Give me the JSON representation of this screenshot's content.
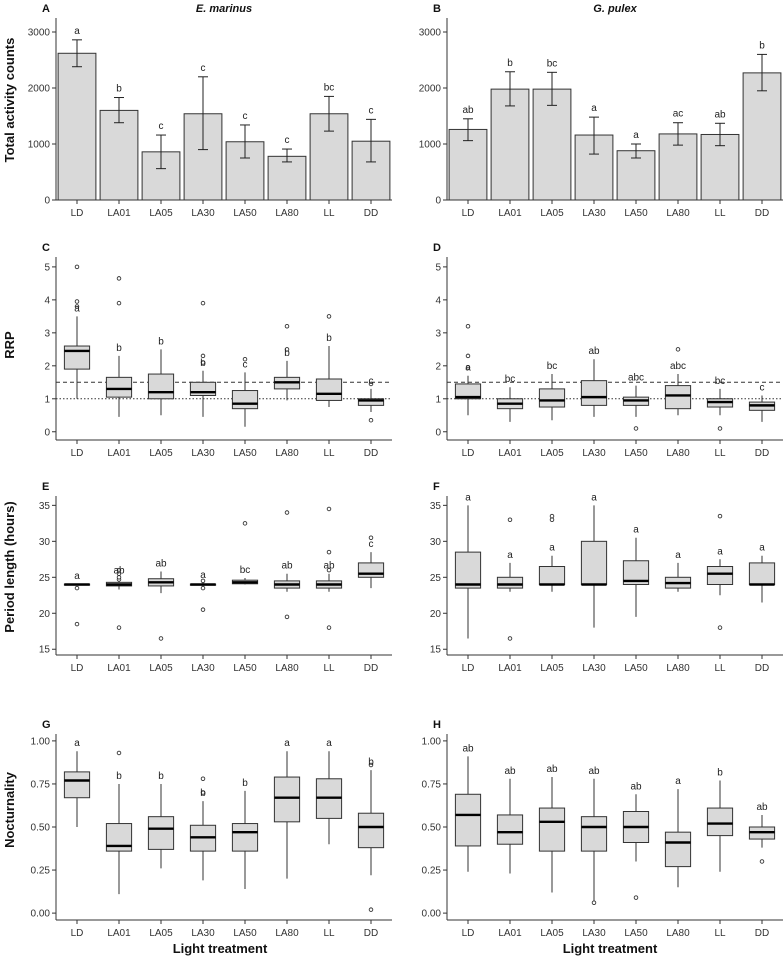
{
  "figure": {
    "y_labels": [
      "Total activity counts",
      "RRP",
      "Period length (hours)",
      "Nocturnality"
    ],
    "x_label": "Light treatment",
    "species": [
      "E. marinus",
      "G. pulex"
    ]
  },
  "chart_data": [
    {
      "panel": "A",
      "title": "E. marinus",
      "type": "bar",
      "row": 0,
      "col": 0,
      "ylabel": "Total activity counts",
      "xlabel": "",
      "categories": [
        "LD",
        "LA01",
        "LA05",
        "LA30",
        "LA50",
        "LA80",
        "LL",
        "DD"
      ],
      "ylim": [
        0,
        3250
      ],
      "yticks": [
        0,
        1000,
        2000,
        3000
      ],
      "ytick_labels": [
        "0",
        "1000",
        "2000",
        "3000"
      ],
      "values": [
        2620,
        1600,
        860,
        1540,
        1040,
        780,
        1540,
        1050
      ],
      "err_low": [
        2380,
        1380,
        560,
        900,
        750,
        680,
        1230,
        680
      ],
      "err_high": [
        2860,
        1830,
        1160,
        2200,
        1340,
        910,
        1850,
        1440
      ],
      "letters": [
        "a",
        "b",
        "c",
        "c",
        "c",
        "c",
        "bc",
        "c"
      ]
    },
    {
      "panel": "B",
      "title": "G. pulex",
      "type": "bar",
      "row": 0,
      "col": 1,
      "ylabel": "",
      "xlabel": "",
      "categories": [
        "LD",
        "LA01",
        "LA05",
        "LA30",
        "LA50",
        "LA80",
        "LL",
        "DD"
      ],
      "ylim": [
        0,
        3250
      ],
      "yticks": [
        0,
        1000,
        2000,
        3000
      ],
      "ytick_labels": [
        "0",
        "1000",
        "2000",
        "3000"
      ],
      "values": [
        1260,
        1980,
        1980,
        1160,
        880,
        1180,
        1170,
        2270
      ],
      "err_low": [
        1060,
        1680,
        1690,
        820,
        750,
        980,
        970,
        1950
      ],
      "err_high": [
        1450,
        2290,
        2280,
        1480,
        1000,
        1380,
        1370,
        2600
      ],
      "letters": [
        "ab",
        "b",
        "bc",
        "a",
        "a",
        "ac",
        "ab",
        "b"
      ]
    },
    {
      "panel": "C",
      "title": "",
      "type": "box",
      "row": 1,
      "col": 0,
      "ylabel": "RRP",
      "xlabel": "",
      "categories": [
        "LD",
        "LA01",
        "LA05",
        "LA30",
        "LA50",
        "LA80",
        "LL",
        "DD"
      ],
      "ylim": [
        -0.25,
        5.3
      ],
      "yticks": [
        0,
        1,
        2,
        3,
        4,
        5
      ],
      "ytick_labels": [
        "0",
        "1",
        "2",
        "3",
        "4",
        "5"
      ],
      "hlines": [
        1.5,
        1.0
      ],
      "boxes": [
        {
          "min": 1.0,
          "q1": 1.9,
          "med": 2.45,
          "q3": 2.6,
          "max": 3.5,
          "out": [
            3.8,
            3.95,
            5.0
          ]
        },
        {
          "min": 0.45,
          "q1": 1.05,
          "med": 1.3,
          "q3": 1.65,
          "max": 2.3,
          "out": [
            3.9,
            4.65
          ]
        },
        {
          "min": 0.5,
          "q1": 1.0,
          "med": 1.2,
          "q3": 1.75,
          "max": 2.5,
          "out": []
        },
        {
          "min": 0.45,
          "q1": 1.1,
          "med": 1.2,
          "q3": 1.5,
          "max": 1.85,
          "out": [
            2.1,
            2.3,
            3.9
          ]
        },
        {
          "min": 0.15,
          "q1": 0.7,
          "med": 0.85,
          "q3": 1.25,
          "max": 1.8,
          "out": [
            2.2
          ]
        },
        {
          "min": 0.95,
          "q1": 1.3,
          "med": 1.5,
          "q3": 1.65,
          "max": 2.15,
          "out": [
            2.5,
            3.2
          ]
        },
        {
          "min": 0.75,
          "q1": 0.95,
          "med": 1.15,
          "q3": 1.6,
          "max": 2.6,
          "out": [
            3.5
          ]
        },
        {
          "min": 0.6,
          "q1": 0.8,
          "med": 0.95,
          "q3": 1.0,
          "max": 1.3,
          "out": [
            0.35,
            1.45
          ]
        }
      ],
      "letters": [
        "a",
        "b",
        "b",
        "b",
        "c",
        "b",
        "b",
        "c"
      ]
    },
    {
      "panel": "D",
      "title": "",
      "type": "box",
      "row": 1,
      "col": 1,
      "ylabel": "",
      "xlabel": "",
      "categories": [
        "LD",
        "LA01",
        "LA05",
        "LA30",
        "LA50",
        "LA80",
        "LL",
        "DD"
      ],
      "ylim": [
        -0.25,
        5.3
      ],
      "yticks": [
        0,
        1,
        2,
        3,
        4,
        5
      ],
      "ytick_labels": [
        "0",
        "1",
        "2",
        "3",
        "4",
        "5"
      ],
      "hlines": [
        1.5,
        1.0
      ],
      "boxes": [
        {
          "min": 0.5,
          "q1": 1.0,
          "med": 1.05,
          "q3": 1.45,
          "max": 1.7,
          "out": [
            1.95,
            2.3,
            3.2
          ]
        },
        {
          "min": 0.3,
          "q1": 0.7,
          "med": 0.85,
          "q3": 1.0,
          "max": 1.35,
          "out": []
        },
        {
          "min": 0.35,
          "q1": 0.75,
          "med": 0.95,
          "q3": 1.3,
          "max": 1.75,
          "out": []
        },
        {
          "min": 0.45,
          "q1": 0.8,
          "med": 1.05,
          "q3": 1.55,
          "max": 2.2,
          "out": []
        },
        {
          "min": 0.45,
          "q1": 0.8,
          "med": 0.95,
          "q3": 1.05,
          "max": 1.4,
          "out": [
            0.1
          ]
        },
        {
          "min": 0.5,
          "q1": 0.7,
          "med": 1.1,
          "q3": 1.4,
          "max": 1.75,
          "out": [
            2.5
          ]
        },
        {
          "min": 0.5,
          "q1": 0.75,
          "med": 0.9,
          "q3": 1.0,
          "max": 1.3,
          "out": [
            0.1
          ]
        },
        {
          "min": 0.3,
          "q1": 0.65,
          "med": 0.8,
          "q3": 0.9,
          "max": 1.1,
          "out": []
        }
      ],
      "letters": [
        "a",
        "bc",
        "bc",
        "ab",
        "abc",
        "abc",
        "bc",
        "c"
      ]
    },
    {
      "panel": "E",
      "title": "",
      "type": "box",
      "row": 2,
      "col": 0,
      "ylabel": "Period length (hours)",
      "xlabel": "",
      "categories": [
        "LD",
        "LA01",
        "LA05",
        "LA30",
        "LA50",
        "LA80",
        "LL",
        "DD"
      ],
      "ylim": [
        14.2,
        36.3
      ],
      "yticks": [
        15,
        20,
        25,
        30,
        35
      ],
      "ytick_labels": [
        "15",
        "20",
        "25",
        "30",
        "35"
      ],
      "boxes": [
        {
          "min": 23.9,
          "q1": 23.95,
          "med": 24.0,
          "q3": 24.05,
          "max": 24.1,
          "out": [
            18.5,
            23.5
          ]
        },
        {
          "min": 23.3,
          "q1": 23.8,
          "med": 24.0,
          "q3": 24.3,
          "max": 24.8,
          "out": [
            18.0,
            24.7,
            25.0,
            25.5,
            26.0
          ]
        },
        {
          "min": 22.8,
          "q1": 23.8,
          "med": 24.3,
          "q3": 24.8,
          "max": 25.8,
          "out": [
            16.5
          ]
        },
        {
          "min": 23.8,
          "q1": 23.9,
          "med": 24.0,
          "q3": 24.05,
          "max": 24.2,
          "out": [
            20.5,
            23.5,
            24.5
          ]
        },
        {
          "min": 24.0,
          "q1": 24.1,
          "med": 24.3,
          "q3": 24.6,
          "max": 24.9,
          "out": [
            32.5
          ]
        },
        {
          "min": 23.0,
          "q1": 23.5,
          "med": 24.0,
          "q3": 24.5,
          "max": 25.5,
          "out": [
            19.5,
            34.0
          ]
        },
        {
          "min": 23.0,
          "q1": 23.5,
          "med": 24.0,
          "q3": 24.5,
          "max": 25.5,
          "out": [
            18.0,
            26.0,
            28.5,
            34.5
          ]
        },
        {
          "min": 23.5,
          "q1": 25.0,
          "med": 25.5,
          "q3": 27.0,
          "max": 28.5,
          "out": [
            30.5
          ]
        }
      ],
      "letters": [
        "a",
        "ab",
        "ab",
        "a",
        "bc",
        "ab",
        "ab",
        "c"
      ]
    },
    {
      "panel": "F",
      "title": "",
      "type": "box",
      "row": 2,
      "col": 1,
      "ylabel": "",
      "xlabel": "",
      "categories": [
        "LD",
        "LA01",
        "LA05",
        "LA30",
        "LA50",
        "LA80",
        "LL",
        "DD"
      ],
      "ylim": [
        14.2,
        36.3
      ],
      "yticks": [
        15,
        20,
        25,
        30,
        35
      ],
      "ytick_labels": [
        "15",
        "20",
        "25",
        "30",
        "35"
      ],
      "boxes": [
        {
          "min": 16.5,
          "q1": 23.5,
          "med": 24.0,
          "q3": 28.5,
          "max": 35.0,
          "out": []
        },
        {
          "min": 23.0,
          "q1": 23.5,
          "med": 24.0,
          "q3": 25.0,
          "max": 27.0,
          "out": [
            16.5,
            33.0
          ]
        },
        {
          "min": 23.0,
          "q1": 24.0,
          "med": 24.0,
          "q3": 26.5,
          "max": 28.0,
          "out": [
            33.0,
            33.5
          ]
        },
        {
          "min": 18.0,
          "q1": 24.0,
          "med": 24.0,
          "q3": 30.0,
          "max": 35.0,
          "out": []
        },
        {
          "min": 19.5,
          "q1": 24.0,
          "med": 24.5,
          "q3": 27.3,
          "max": 30.5,
          "out": []
        },
        {
          "min": 23.0,
          "q1": 23.5,
          "med": 24.2,
          "q3": 25.0,
          "max": 27.0,
          "out": []
        },
        {
          "min": 22.5,
          "q1": 24.0,
          "med": 25.5,
          "q3": 26.5,
          "max": 27.5,
          "out": [
            18.0,
            33.5
          ]
        },
        {
          "min": 21.5,
          "q1": 24.0,
          "med": 24.0,
          "q3": 27.0,
          "max": 28.0,
          "out": []
        }
      ],
      "letters": [
        "a",
        "a",
        "a",
        "a",
        "a",
        "a",
        "a",
        "a"
      ]
    },
    {
      "panel": "G",
      "title": "",
      "type": "box",
      "row": 3,
      "col": 0,
      "ylabel": "Nocturnality",
      "xlabel": "Light treatment",
      "categories": [
        "LD",
        "LA01",
        "LA05",
        "LA30",
        "LA50",
        "LA80",
        "LL",
        "DD"
      ],
      "ylim": [
        -0.04,
        1.04
      ],
      "yticks": [
        0,
        0.25,
        0.5,
        0.75,
        1.0
      ],
      "ytick_labels": [
        "0.00",
        "0.25",
        "0.50",
        "0.75",
        "1.00"
      ],
      "boxes": [
        {
          "min": 0.5,
          "q1": 0.67,
          "med": 0.77,
          "q3": 0.82,
          "max": 0.94,
          "out": []
        },
        {
          "min": 0.11,
          "q1": 0.36,
          "med": 0.39,
          "q3": 0.52,
          "max": 0.75,
          "out": [
            0.93
          ]
        },
        {
          "min": 0.26,
          "q1": 0.37,
          "med": 0.49,
          "q3": 0.56,
          "max": 0.75,
          "out": []
        },
        {
          "min": 0.19,
          "q1": 0.36,
          "med": 0.44,
          "q3": 0.51,
          "max": 0.65,
          "out": [
            0.7,
            0.78
          ]
        },
        {
          "min": 0.14,
          "q1": 0.36,
          "med": 0.47,
          "q3": 0.52,
          "max": 0.71,
          "out": []
        },
        {
          "min": 0.2,
          "q1": 0.53,
          "med": 0.67,
          "q3": 0.79,
          "max": 0.94,
          "out": []
        },
        {
          "min": 0.4,
          "q1": 0.55,
          "med": 0.67,
          "q3": 0.78,
          "max": 0.94,
          "out": []
        },
        {
          "min": 0.22,
          "q1": 0.38,
          "med": 0.5,
          "q3": 0.58,
          "max": 0.83,
          "out": [
            0.02,
            0.86
          ]
        }
      ],
      "letters": [
        "a",
        "b",
        "b",
        "b",
        "b",
        "a",
        "a",
        "b"
      ]
    },
    {
      "panel": "H",
      "title": "",
      "type": "box",
      "row": 3,
      "col": 1,
      "ylabel": "",
      "xlabel": "Light treatment",
      "categories": [
        "LD",
        "LA01",
        "LA05",
        "LA30",
        "LA50",
        "LA80",
        "LL",
        "DD"
      ],
      "ylim": [
        -0.04,
        1.04
      ],
      "yticks": [
        0,
        0.25,
        0.5,
        0.75,
        1.0
      ],
      "ytick_labels": [
        "0.00",
        "0.25",
        "0.50",
        "0.75",
        "1.00"
      ],
      "boxes": [
        {
          "min": 0.24,
          "q1": 0.39,
          "med": 0.57,
          "q3": 0.69,
          "max": 0.91,
          "out": []
        },
        {
          "min": 0.23,
          "q1": 0.4,
          "med": 0.47,
          "q3": 0.57,
          "max": 0.78,
          "out": []
        },
        {
          "min": 0.12,
          "q1": 0.36,
          "med": 0.53,
          "q3": 0.61,
          "max": 0.79,
          "out": []
        },
        {
          "min": 0.07,
          "q1": 0.36,
          "med": 0.5,
          "q3": 0.56,
          "max": 0.78,
          "out": [
            0.06
          ]
        },
        {
          "min": 0.3,
          "q1": 0.41,
          "med": 0.5,
          "q3": 0.59,
          "max": 0.69,
          "out": [
            0.09
          ]
        },
        {
          "min": 0.15,
          "q1": 0.27,
          "med": 0.41,
          "q3": 0.47,
          "max": 0.72,
          "out": []
        },
        {
          "min": 0.24,
          "q1": 0.45,
          "med": 0.52,
          "q3": 0.61,
          "max": 0.77,
          "out": []
        },
        {
          "min": 0.38,
          "q1": 0.43,
          "med": 0.47,
          "q3": 0.5,
          "max": 0.57,
          "out": [
            0.3
          ]
        }
      ],
      "letters": [
        "ab",
        "ab",
        "ab",
        "ab",
        "ab",
        "a",
        "b",
        "ab"
      ]
    }
  ]
}
